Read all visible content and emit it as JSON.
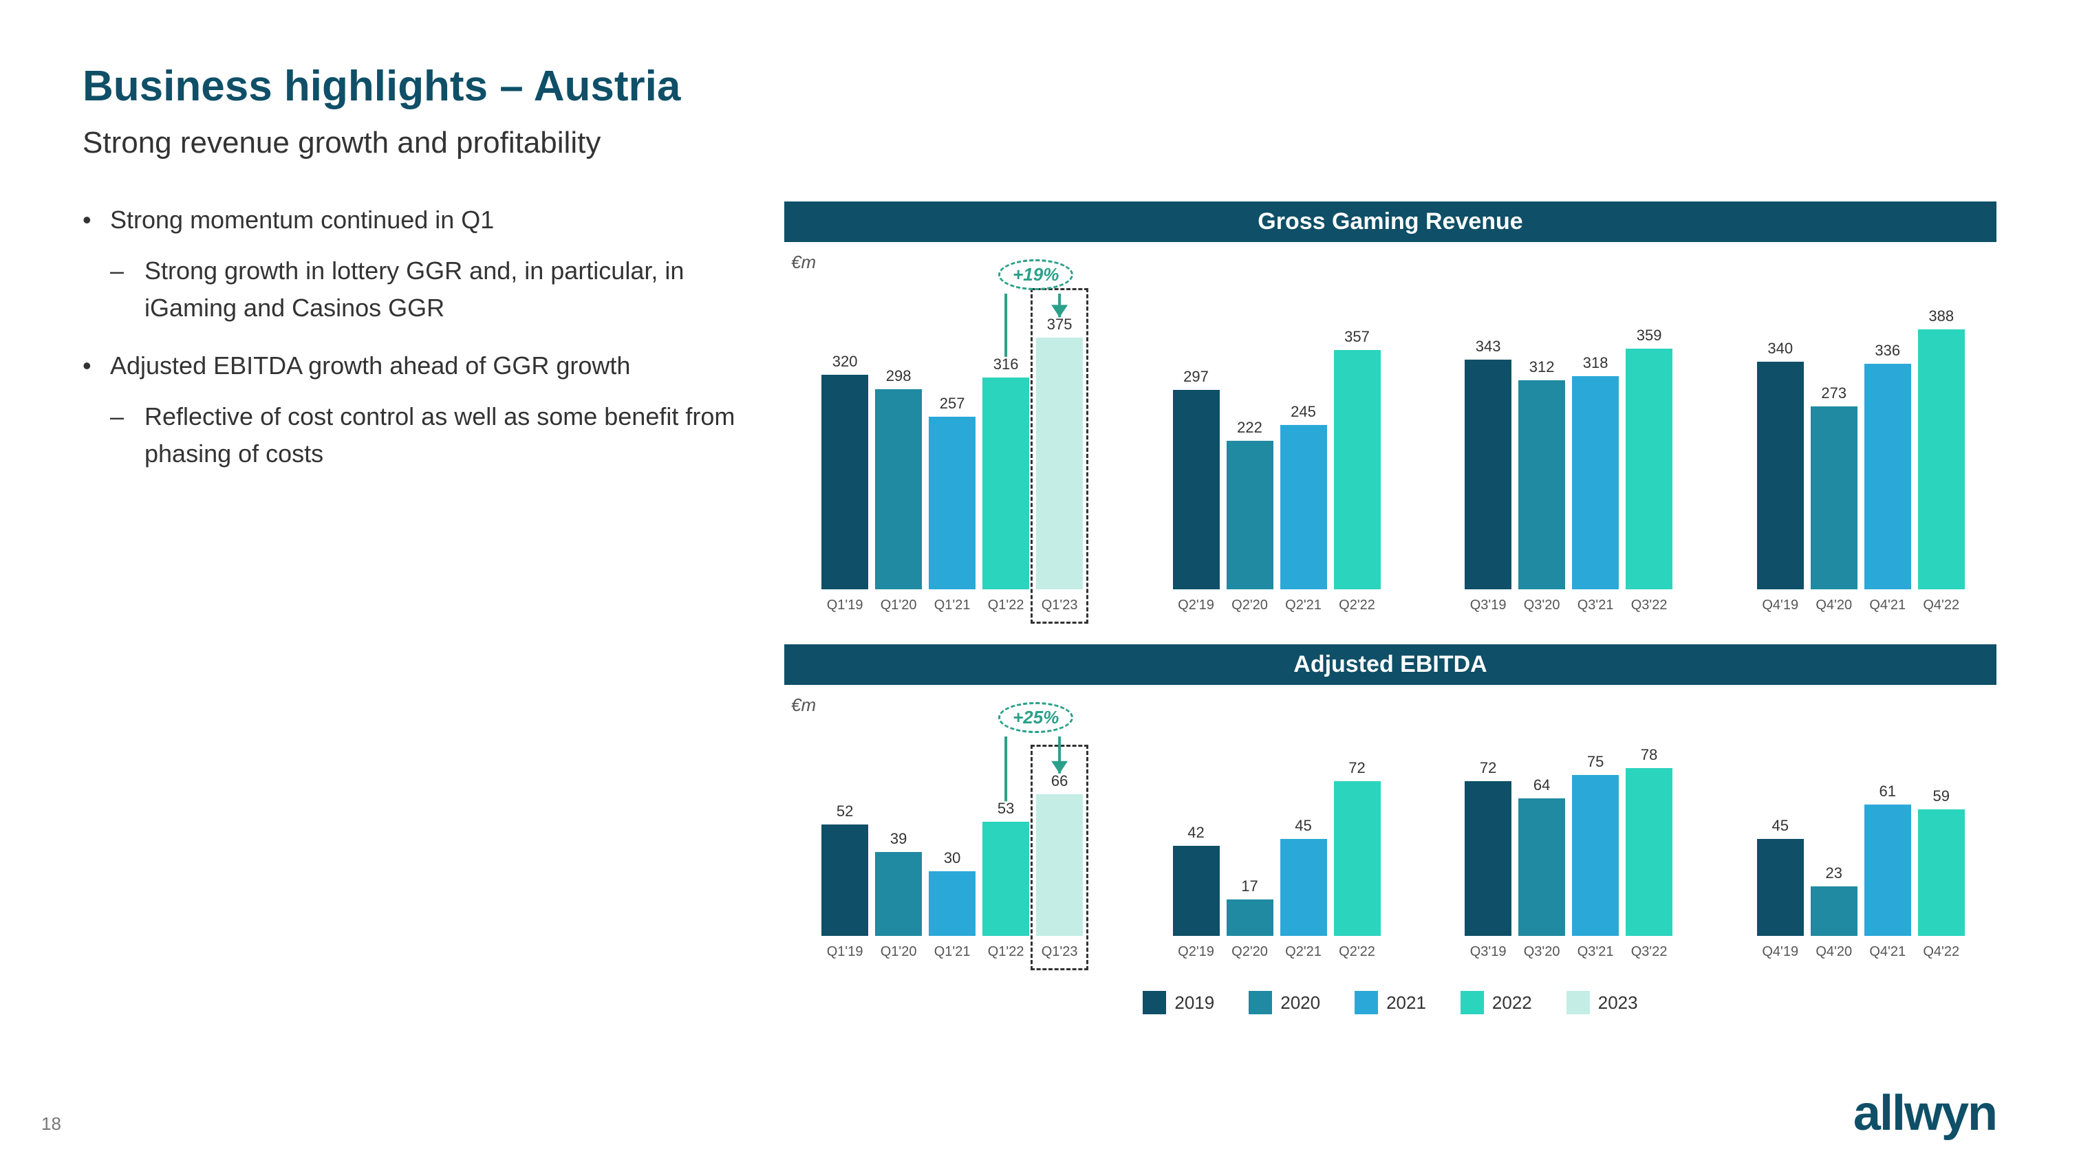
{
  "title": "Business highlights – Austria",
  "subtitle": "Strong revenue growth and profitability",
  "page_number": "18",
  "logo": "allwyn",
  "colors": {
    "2019": "#0f4f67",
    "2020": "#1f8aa1",
    "2021": "#2aa9d8",
    "2022": "#2bd4bd",
    "2023": "#c3ede5",
    "accent_green": "#2aa08a"
  },
  "bullets": [
    {
      "text": "Strong momentum continued in Q1",
      "sub": [
        "Strong growth in lottery GGR and, in particular, in iGaming and Casinos GGR"
      ]
    },
    {
      "text": "Adjusted EBITDA growth ahead of GGR growth",
      "sub": [
        "Reflective of cost control as well as some benefit from phasing of costs"
      ]
    }
  ],
  "legend": [
    {
      "label": "2019",
      "color": "#0f4f67"
    },
    {
      "label": "2020",
      "color": "#1f8aa1"
    },
    {
      "label": "2021",
      "color": "#2aa9d8"
    },
    {
      "label": "2022",
      "color": "#2bd4bd"
    },
    {
      "label": "2023",
      "color": "#c3ede5"
    }
  ],
  "charts": [
    {
      "title": "Gross Gaming Revenue",
      "unit": "€m",
      "ymax": 400,
      "callout": "+19%",
      "highlight_group": 0,
      "highlight_bar": 4,
      "groups": [
        {
          "bars": [
            {
              "label": "Q1'19",
              "value": 320,
              "year": "2019"
            },
            {
              "label": "Q1'20",
              "value": 298,
              "year": "2020"
            },
            {
              "label": "Q1'21",
              "value": 257,
              "year": "2021"
            },
            {
              "label": "Q1'22",
              "value": 316,
              "year": "2022"
            },
            {
              "label": "Q1'23",
              "value": 375,
              "year": "2023"
            }
          ]
        },
        {
          "bars": [
            {
              "label": "Q2'19",
              "value": 297,
              "year": "2019"
            },
            {
              "label": "Q2'20",
              "value": 222,
              "year": "2020"
            },
            {
              "label": "Q2'21",
              "value": 245,
              "year": "2021"
            },
            {
              "label": "Q2'22",
              "value": 357,
              "year": "2022"
            }
          ]
        },
        {
          "bars": [
            {
              "label": "Q3'19",
              "value": 343,
              "year": "2019"
            },
            {
              "label": "Q3'20",
              "value": 312,
              "year": "2020"
            },
            {
              "label": "Q3'21",
              "value": 318,
              "year": "2021"
            },
            {
              "label": "Q3'22",
              "value": 359,
              "year": "2022"
            }
          ]
        },
        {
          "bars": [
            {
              "label": "Q4'19",
              "value": 340,
              "year": "2019"
            },
            {
              "label": "Q4'20",
              "value": 273,
              "year": "2020"
            },
            {
              "label": "Q4'21",
              "value": 336,
              "year": "2021"
            },
            {
              "label": "Q4'22",
              "value": 388,
              "year": "2022"
            }
          ]
        }
      ]
    },
    {
      "title": "Adjusted EBITDA",
      "unit": "€m",
      "ymax": 80,
      "callout": "+25%",
      "highlight_group": 0,
      "highlight_bar": 4,
      "groups": [
        {
          "bars": [
            {
              "label": "Q1'19",
              "value": 52,
              "year": "2019"
            },
            {
              "label": "Q1'20",
              "value": 39,
              "year": "2020"
            },
            {
              "label": "Q1'21",
              "value": 30,
              "year": "2021"
            },
            {
              "label": "Q1'22",
              "value": 53,
              "year": "2022"
            },
            {
              "label": "Q1'23",
              "value": 66,
              "year": "2023"
            }
          ]
        },
        {
          "bars": [
            {
              "label": "Q2'19",
              "value": 42,
              "year": "2019"
            },
            {
              "label": "Q2'20",
              "value": 17,
              "year": "2020"
            },
            {
              "label": "Q2'21",
              "value": 45,
              "year": "2021"
            },
            {
              "label": "Q2'22",
              "value": 72,
              "year": "2022"
            }
          ]
        },
        {
          "bars": [
            {
              "label": "Q3'19",
              "value": 72,
              "year": "2019"
            },
            {
              "label": "Q3'20",
              "value": 64,
              "year": "2020"
            },
            {
              "label": "Q3'21",
              "value": 75,
              "year": "2021"
            },
            {
              "label": "Q3'22",
              "value": 78,
              "year": "2022"
            }
          ]
        },
        {
          "bars": [
            {
              "label": "Q4'19",
              "value": 45,
              "year": "2019"
            },
            {
              "label": "Q4'20",
              "value": 23,
              "year": "2020"
            },
            {
              "label": "Q4'21",
              "value": 61,
              "year": "2021"
            },
            {
              "label": "Q4'22",
              "value": 59,
              "year": "2022"
            }
          ]
        }
      ]
    }
  ]
}
